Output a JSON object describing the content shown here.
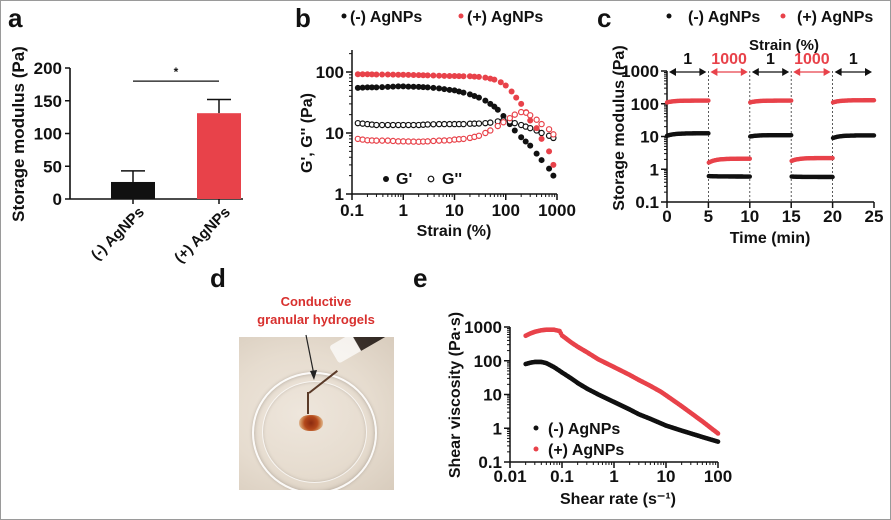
{
  "panels": {
    "a": {
      "letter": "a"
    },
    "b": {
      "letter": "b"
    },
    "c": {
      "letter": "c"
    },
    "d": {
      "letter": "d",
      "annotation_line1": "Conductive",
      "annotation_line2": "granular hydrogels",
      "photo_description": "Petri dish with conductive granular hydrogel extruded from syringe"
    },
    "e": {
      "letter": "e"
    }
  },
  "colors": {
    "black_series": "#111111",
    "red_series": "#e8424a",
    "annotation_red": "#d8302e"
  },
  "chart_data": [
    {
      "id": "a",
      "type": "bar",
      "title": "",
      "xlabel": "",
      "ylabel": "Storage modulus (Pa)",
      "categories": [
        "(-) AgNPs",
        "(+) AgNPs"
      ],
      "values": [
        26,
        131
      ],
      "errors": [
        17,
        21
      ],
      "colors": [
        "#111111",
        "#e8424a"
      ],
      "ylim": [
        0,
        200
      ],
      "yticks": [
        "0",
        "50",
        "100",
        "150",
        "200"
      ],
      "significance": {
        "label": "*",
        "y": 180
      },
      "grid": false
    },
    {
      "id": "b",
      "type": "scatter",
      "xscale": "log",
      "yscale": "log",
      "xlabel": "Strain (%)",
      "ylabel": "G', G'' (Pa)",
      "xlim": [
        0.1,
        1000
      ],
      "ylim": [
        1,
        200
      ],
      "xticks": [
        "0.1",
        "1",
        "10",
        "100",
        "1000"
      ],
      "yticks": [
        "1",
        "10",
        "100"
      ],
      "legend_top": [
        "(-) AgNPs",
        "(+) AgNPs"
      ],
      "legend_markers": [
        "G'",
        "G''"
      ],
      "series": [
        {
          "name": "(-) AgNPs G'",
          "marker": "filled",
          "color": "#111111",
          "x": [
            0.13,
            0.2,
            0.3,
            0.5,
            0.8,
            1,
            2,
            3,
            5,
            8,
            10,
            15,
            20,
            30,
            40,
            50,
            60,
            70,
            90,
            120,
            150,
            200,
            300,
            400,
            500,
            700,
            850
          ],
          "y": [
            55,
            56,
            56,
            57,
            58,
            58,
            57,
            56,
            54,
            51,
            50,
            46,
            43,
            38,
            34,
            30,
            27,
            24,
            19,
            14,
            11,
            8.5,
            6.2,
            4.6,
            3.6,
            2.6,
            2.0
          ]
        },
        {
          "name": "(-) AgNPs G''",
          "marker": "open",
          "color": "#111111",
          "x": [
            0.13,
            0.2,
            0.3,
            0.5,
            0.8,
            1,
            2,
            3,
            5,
            8,
            10,
            15,
            20,
            30,
            40,
            50,
            70,
            90,
            120,
            150,
            200,
            300,
            400,
            500,
            700,
            850
          ],
          "y": [
            14.5,
            14,
            13.5,
            13.5,
            13.5,
            13.5,
            13.5,
            13.8,
            14,
            14,
            14,
            14,
            14.2,
            14.3,
            14.5,
            14.8,
            15.5,
            16,
            15.5,
            14.5,
            13.5,
            12,
            11,
            10,
            9,
            8.3
          ]
        },
        {
          "name": "(+) AgNPs G'",
          "marker": "filled",
          "color": "#e8424a",
          "x": [
            0.13,
            0.2,
            0.3,
            0.5,
            0.8,
            1,
            2,
            3,
            5,
            8,
            10,
            15,
            20,
            30,
            40,
            50,
            60,
            80,
            100,
            130,
            160,
            200,
            250,
            300,
            400,
            500,
            700,
            850
          ],
          "y": [
            92,
            92,
            91,
            91,
            90,
            90,
            89,
            88,
            87,
            86,
            86,
            85,
            85,
            83,
            81,
            78,
            75,
            68,
            60,
            48,
            38,
            30,
            22,
            16,
            12,
            8,
            5,
            3
          ]
        },
        {
          "name": "(+) AgNPs G''",
          "marker": "open",
          "color": "#e8424a",
          "x": [
            0.13,
            0.2,
            0.3,
            0.5,
            0.8,
            1,
            2,
            3,
            5,
            8,
            10,
            15,
            20,
            30,
            40,
            50,
            70,
            90,
            120,
            150,
            200,
            250,
            300,
            400,
            500,
            700,
            850
          ],
          "y": [
            8,
            7.6,
            7.5,
            7.5,
            7.3,
            7.3,
            7.2,
            7.3,
            7.5,
            7.6,
            7.8,
            8,
            8.3,
            9,
            10,
            11,
            13,
            15,
            17.5,
            20,
            22,
            21.5,
            19.5,
            16.5,
            14,
            11.5,
            9.5
          ]
        }
      ],
      "grid": false
    },
    {
      "id": "c",
      "type": "scatter",
      "yscale": "log",
      "xlabel": "Time (min)",
      "ylabel": "Storage modulus (Pa)",
      "xlim": [
        0,
        25
      ],
      "ylim": [
        0.1,
        1000
      ],
      "xticks": [
        "0",
        "5",
        "10",
        "15",
        "20",
        "25"
      ],
      "yticks": [
        "0.1",
        "1",
        "10",
        "100",
        "1000"
      ],
      "legend_top": [
        "(-) AgNPs",
        "(+) AgNPs"
      ],
      "strain_header": "Strain (%)",
      "strain_segments": [
        {
          "label": "1",
          "from": 0,
          "to": 5,
          "color": "#111111"
        },
        {
          "label": "1000",
          "from": 5,
          "to": 10,
          "color": "#e8424a"
        },
        {
          "label": "1",
          "from": 10,
          "to": 15,
          "color": "#111111"
        },
        {
          "label": "1000",
          "from": 15,
          "to": 20,
          "color": "#e8424a"
        },
        {
          "label": "1",
          "from": 20,
          "to": 25,
          "color": "#111111"
        }
      ],
      "series": [
        {
          "name": "(-) AgNPs",
          "color": "#111111",
          "segments": [
            {
              "from": 0,
              "to": 5,
              "start": 10.5,
              "end": 12.5
            },
            {
              "from": 5.05,
              "to": 10,
              "start": 0.62,
              "end": 0.6
            },
            {
              "from": 10.05,
              "to": 15,
              "start": 10,
              "end": 11
            },
            {
              "from": 15.05,
              "to": 20,
              "start": 0.6,
              "end": 0.58
            },
            {
              "from": 20.05,
              "to": 25,
              "start": 9,
              "end": 10.8
            }
          ]
        },
        {
          "name": "(+) AgNPs",
          "color": "#e8424a",
          "segments": [
            {
              "from": 0,
              "to": 5,
              "start": 110,
              "end": 125
            },
            {
              "from": 5.05,
              "to": 10,
              "start": 1.6,
              "end": 2.1
            },
            {
              "from": 10.05,
              "to": 15,
              "start": 110,
              "end": 125
            },
            {
              "from": 15.05,
              "to": 20,
              "start": 1.8,
              "end": 2.2
            },
            {
              "from": 20.05,
              "to": 25,
              "start": 110,
              "end": 128
            }
          ]
        }
      ],
      "grid": false
    },
    {
      "id": "e",
      "type": "line",
      "xscale": "log",
      "yscale": "log",
      "xlabel": "Shear rate (s⁻¹)",
      "ylabel": "Shear viscosity (Pa·s)",
      "xlim": [
        0.01,
        100
      ],
      "ylim": [
        0.1,
        1000
      ],
      "xticks": [
        "0.01",
        "0.1",
        "1",
        "10",
        "100"
      ],
      "yticks": [
        "0.1",
        "1",
        "10",
        "100",
        "1000"
      ],
      "legend": [
        "(-) AgNPs",
        "(+) AgNPs"
      ],
      "legend_position": "bottom-left",
      "series": [
        {
          "name": "(-) AgNPs",
          "color": "#111111",
          "x": [
            0.02,
            0.025,
            0.03,
            0.04,
            0.05,
            0.07,
            0.1,
            0.15,
            0.2,
            0.3,
            0.5,
            1,
            2,
            3,
            5,
            10,
            20,
            50,
            100
          ],
          "y": [
            80,
            88,
            92,
            92,
            85,
            65,
            45,
            30,
            22,
            15,
            10,
            6,
            3.6,
            2.6,
            1.9,
            1.2,
            0.85,
            0.55,
            0.4
          ]
        },
        {
          "name": "(+) AgNPs",
          "color": "#e8424a",
          "x": [
            0.02,
            0.025,
            0.03,
            0.04,
            0.05,
            0.07,
            0.09,
            0.1,
            0.15,
            0.2,
            0.3,
            0.5,
            1,
            2,
            3,
            5,
            8,
            10,
            20,
            50,
            100
          ],
          "y": [
            550,
            650,
            720,
            800,
            830,
            830,
            760,
            560,
            350,
            260,
            180,
            110,
            65,
            38,
            27,
            18,
            12,
            9.5,
            4.5,
            1.6,
            0.7
          ]
        }
      ],
      "grid": false
    }
  ]
}
